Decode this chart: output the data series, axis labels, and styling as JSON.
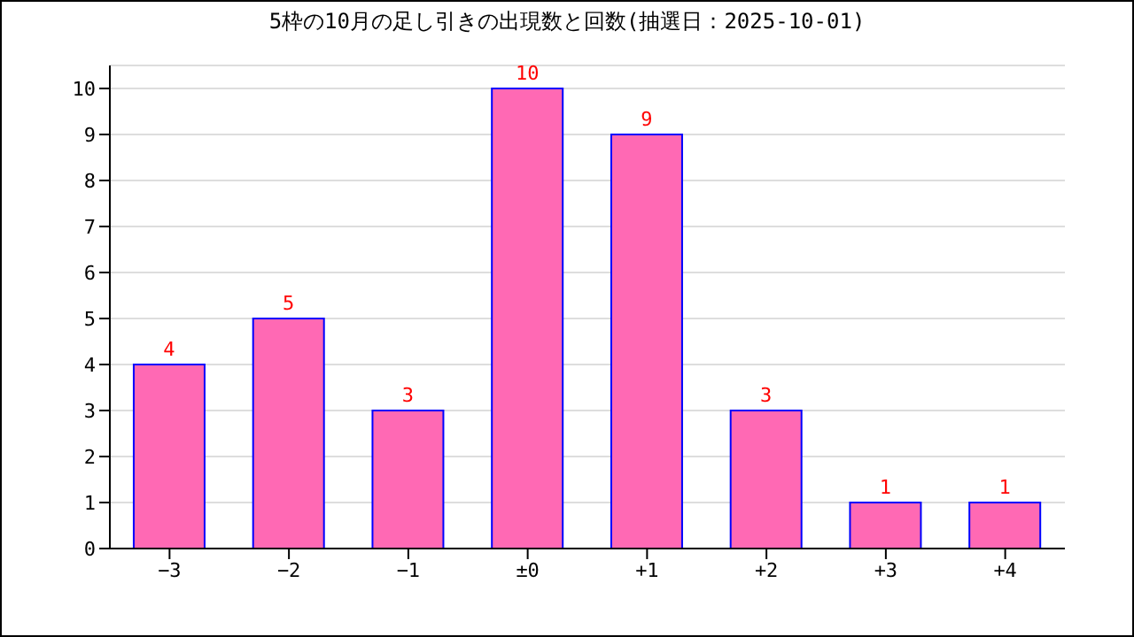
{
  "chart_data": {
    "type": "bar",
    "title": "5枠の10月の足し引きの出現数と回数(抽選日：2025-10-01)",
    "categories": [
      "−3",
      "−2",
      "−1",
      "±0",
      "+1",
      "+2",
      "+3",
      "+4"
    ],
    "values": [
      4,
      5,
      3,
      10,
      9,
      3,
      1,
      1
    ],
    "color": "#ff69b4",
    "ylim": [
      0,
      10.5
    ],
    "yticks": [
      0,
      1,
      2,
      3,
      4,
      5,
      6,
      7,
      8,
      9,
      10
    ],
    "grid": "y",
    "data_labels": true
  }
}
